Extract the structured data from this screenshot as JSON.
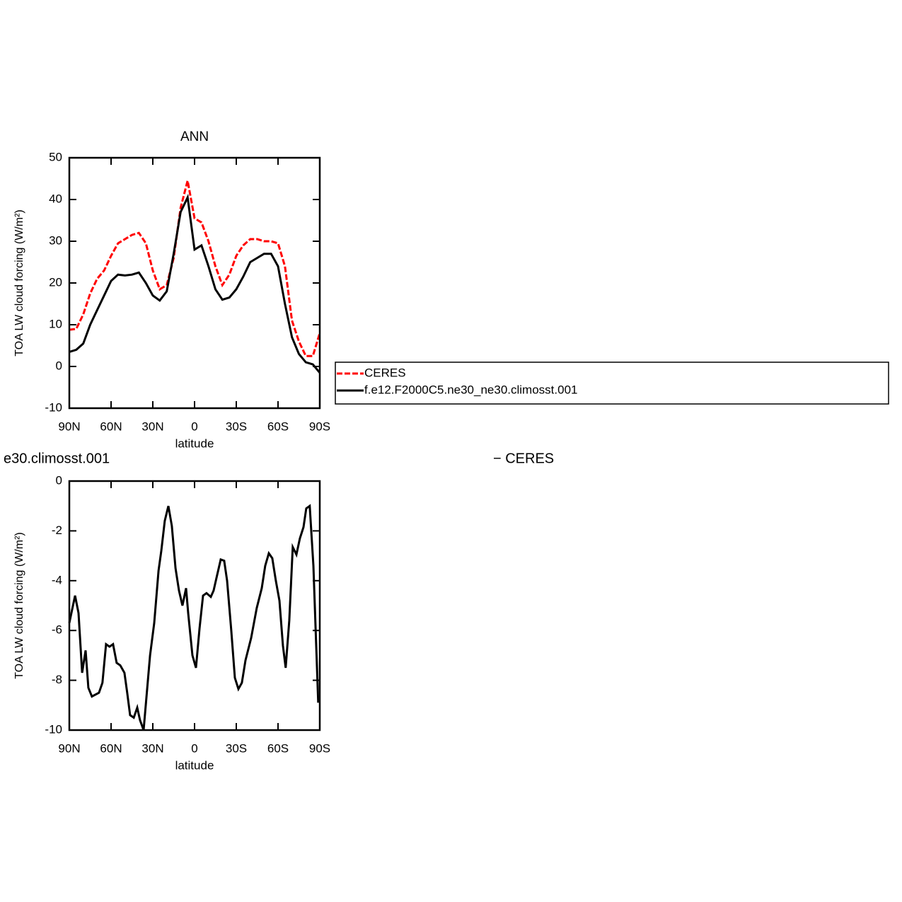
{
  "chart_data": [
    {
      "type": "line",
      "title": "ANN",
      "xlabel": "latitude",
      "ylabel": "TOA LW cloud forcing (W/m²)",
      "x": [
        90,
        85,
        80,
        75,
        70,
        65,
        60,
        55,
        50,
        45,
        40,
        35,
        30,
        25,
        20,
        15,
        10,
        5,
        0,
        -5,
        -10,
        -15,
        -20,
        -25,
        -30,
        -35,
        -40,
        -45,
        -50,
        -55,
        -60,
        -65,
        -70,
        -75,
        -80,
        -85,
        -90
      ],
      "series": [
        {
          "name": "CERES",
          "color": "#ff0000",
          "line_style": "dashed",
          "values": [
            8.8,
            9,
            12.5,
            17.5,
            21,
            23,
            26.5,
            29.5,
            30.5,
            31.5,
            32,
            29.5,
            23,
            18.5,
            19.5,
            26,
            38,
            44.5,
            35.5,
            34.5,
            30,
            24,
            19.5,
            22,
            26.5,
            29,
            30.5,
            30.5,
            30,
            30,
            29.5,
            24,
            11,
            6,
            2.5,
            2.5,
            8
          ]
        },
        {
          "name": "f.e12.F2000C5.ne30_ne30.climosst.001",
          "color": "#000000",
          "line_style": "solid",
          "values": [
            3.5,
            4,
            5.5,
            10,
            13.5,
            17,
            20.5,
            22,
            21.8,
            22,
            22.5,
            20,
            17,
            15.8,
            18,
            27,
            37,
            40.5,
            28,
            29,
            24,
            18.5,
            16,
            16.5,
            18.5,
            21.5,
            25,
            26,
            27,
            27,
            24,
            15,
            7,
            3,
            1,
            0.5,
            -1.5
          ]
        }
      ],
      "xlim": [
        90,
        -90
      ],
      "xticks": [
        {
          "value": 90,
          "label": "90N"
        },
        {
          "value": 60,
          "label": "60N"
        },
        {
          "value": 30,
          "label": "30N"
        },
        0,
        {
          "value": -30,
          "label": "30S"
        },
        {
          "value": -60,
          "label": "60S"
        },
        {
          "value": -90,
          "label": "90S"
        }
      ],
      "ylim": [
        -10,
        50
      ],
      "yticks": [
        -10,
        0,
        10,
        20,
        30,
        40,
        50
      ],
      "legend": "right"
    },
    {
      "type": "line",
      "title_parts": [
        "e30.climosst.001",
        "− CERES"
      ],
      "xlabel": "latitude",
      "ylabel": "TOA LW cloud forcing (W/m²)",
      "x": [
        90,
        85.9,
        83.4,
        80.8,
        78.3,
        76.3,
        73.8,
        68.7,
        66.2,
        63.6,
        61.1,
        58.6,
        56.0,
        53.4,
        50.4,
        48.4,
        46.3,
        43.7,
        41.2,
        39.2,
        36.6,
        32.0,
        29.0,
        25.9,
        23.9,
        21.4,
        18.8,
        16.3,
        13.7,
        11.2,
        8.7,
        6.1,
        4.6,
        1.5,
        -1.0,
        -3.6,
        -6.1,
        -8.6,
        -11.7,
        -13.7,
        -15.7,
        -18.8,
        -21.3,
        -23.4,
        -26.4,
        -29.0,
        -31.5,
        -34.0,
        -36.6,
        -40.7,
        -44.7,
        -48.3,
        -50.8,
        -53.4,
        -55.9,
        -58.4,
        -61.0,
        -63.5,
        -65.5,
        -68.1,
        -70.6,
        -73.2,
        -75.7,
        -78.3,
        -80.3,
        -82.8,
        -85.4,
        -88.9
      ],
      "series": [
        {
          "color": "#000000",
          "line_style": "solid",
          "values": [
            -5.7,
            -4.6,
            -5.3,
            -7.7,
            -6.8,
            -8.3,
            -8.65,
            -8.5,
            -8.1,
            -6.55,
            -6.65,
            -6.55,
            -7.3,
            -7.4,
            -7.7,
            -8.5,
            -9.4,
            -9.5,
            -9.1,
            -9.6,
            -10,
            -7,
            -5.7,
            -3.6,
            -2.8,
            -1.6,
            -1,
            -1.8,
            -3.5,
            -4.4,
            -5,
            -4.3,
            -5.3,
            -7,
            -7.5,
            -5.9,
            -4.6,
            -4.5,
            -4.65,
            -4.4,
            -3.9,
            -3.15,
            -3.2,
            -4,
            -6,
            -7.9,
            -8.35,
            -8.1,
            -7.2,
            -6.3,
            -5.1,
            -4.3,
            -3.4,
            -2.9,
            -3.1,
            -4,
            -4.8,
            -6.6,
            -7.5,
            -5.6,
            -2.65,
            -2.95,
            -2.3,
            -1.85,
            -1.1,
            -1,
            -3.4,
            -8.9
          ]
        }
      ],
      "xlim": [
        90,
        -90
      ],
      "xticks": [
        {
          "value": 90,
          "label": "90N"
        },
        {
          "value": 60,
          "label": "60N"
        },
        {
          "value": 30,
          "label": "30N"
        },
        0,
        {
          "value": -30,
          "label": "30S"
        },
        {
          "value": -60,
          "label": "60S"
        },
        {
          "value": -90,
          "label": "90S"
        }
      ],
      "ylim": [
        -10,
        0
      ],
      "yticks": [
        -10,
        -8,
        -6,
        -4,
        -2,
        0
      ]
    }
  ]
}
